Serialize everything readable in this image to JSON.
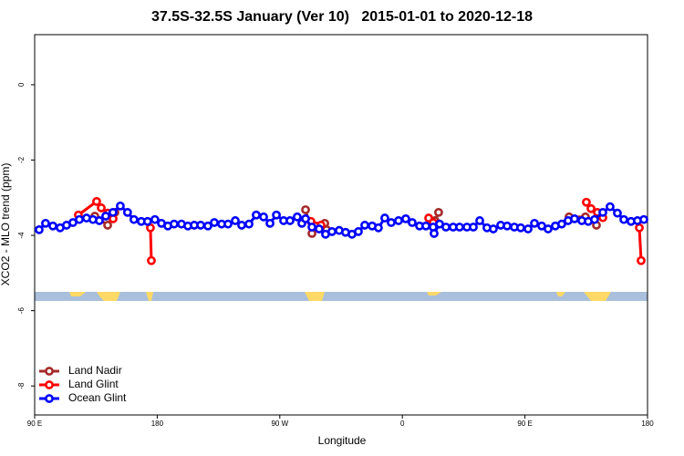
{
  "chart_data": {
    "type": "line",
    "title": "37.5S-32.5S January (Ver 10)   2015-01-01 to 2020-12-18",
    "x_label": "Longitude",
    "y_label": "XCO2 - MLO trend (ppm)",
    "xlim": [
      90,
      540
    ],
    "ylim": [
      -8.77,
      1.33
    ],
    "xticks": [
      {
        "value": 90,
        "label": "90 E"
      },
      {
        "value": 180,
        "label": "180"
      },
      {
        "value": 270,
        "label": "90 W"
      },
      {
        "value": 360,
        "label": "0"
      },
      {
        "value": 450,
        "label": "90 E"
      },
      {
        "value": 540,
        "label": "180"
      }
    ],
    "yticks": [
      0,
      -2,
      -4,
      -6,
      -8
    ],
    "legend": "bottom-left",
    "series": [
      {
        "name": "Land Nadir",
        "color": "#a52a2a",
        "x": [
          134.2,
          143.6,
          148.9,
          null,
          288.9,
          293.6,
          298.9,
          303.0,
          304.3,
          null,
          381.3,
          384.0,
          386.6,
          null,
          482.4,
          494.4,
          502.5
        ],
        "values": [
          -3.49,
          -3.73,
          -3.39,
          null,
          -3.32,
          -3.95,
          -3.75,
          -3.68,
          -3.85,
          null,
          -3.68,
          -3.61,
          -3.39,
          null,
          -3.51,
          -3.51,
          -3.73
        ]
      },
      {
        "name": "Land Glint",
        "color": "#ff0000",
        "x": [
          122.1,
          135.5,
          138.9,
          143.6,
          147.6,
          null,
          175.0,
          175.7,
          null,
          292.9,
          296.2,
          300.3,
          null,
          379.3,
          382.6,
          null,
          495.1,
          498.5,
          503.2,
          507.2,
          null,
          534.0,
          535.3
        ],
        "values": [
          -3.46,
          -3.1,
          -3.27,
          -3.41,
          -3.56,
          null,
          -3.8,
          -4.67,
          null,
          -3.63,
          -3.75,
          -3.73,
          null,
          -3.54,
          -3.66,
          null,
          -3.12,
          -3.29,
          -3.39,
          -3.53,
          null,
          -3.8,
          -4.67
        ]
      },
      {
        "name": "Ocean Glint",
        "color": "#0000ff",
        "x": [
          93.3,
          98.0,
          103.4,
          108.7,
          113.4,
          118.1,
          122.8,
          128.1,
          132.8,
          137.5,
          142.2,
          147.5,
          152.9,
          158.2,
          162.9,
          168.3,
          172.9,
          178.3,
          183.1,
          187.8,
          192.4,
          197.8,
          202.5,
          207.2,
          211.9,
          217.2,
          221.9,
          227.3,
          232.0,
          237.3,
          242.0,
          247.4,
          252.7,
          258.1,
          262.8,
          267.5,
          272.8,
          277.5,
          282.8,
          286.2,
          288.9,
          293.6,
          298.9,
          303.6,
          308.3,
          313.6,
          318.3,
          323.0,
          327.7,
          332.4,
          337.8,
          342.4,
          347.1,
          351.8,
          357.2,
          362.5,
          367.2,
          372.6,
          377.3,
          382.6,
          383.3,
          387.3,
          392.0,
          397.3,
          402.0,
          407.4,
          412.1,
          416.8,
          422.1,
          426.8,
          432.2,
          436.9,
          442.2,
          446.9,
          452.3,
          457.0,
          462.3,
          467.0,
          472.3,
          477.0,
          481.7,
          486.4,
          491.8,
          496.5,
          501.1,
          507.2,
          512.5,
          517.9,
          522.6,
          527.9,
          532.6,
          537.3
        ],
        "values": [
          -3.85,
          -3.68,
          -3.75,
          -3.8,
          -3.73,
          -3.66,
          -3.58,
          -3.54,
          -3.58,
          -3.61,
          -3.49,
          -3.39,
          -3.22,
          -3.39,
          -3.58,
          -3.63,
          -3.63,
          -3.58,
          -3.68,
          -3.75,
          -3.7,
          -3.7,
          -3.75,
          -3.73,
          -3.73,
          -3.75,
          -3.66,
          -3.7,
          -3.7,
          -3.61,
          -3.73,
          -3.7,
          -3.46,
          -3.51,
          -3.68,
          -3.46,
          -3.61,
          -3.61,
          -3.51,
          -3.68,
          -3.56,
          -3.78,
          -3.83,
          -3.97,
          -3.9,
          -3.87,
          -3.92,
          -3.97,
          -3.9,
          -3.73,
          -3.75,
          -3.8,
          -3.54,
          -3.66,
          -3.61,
          -3.56,
          -3.66,
          -3.75,
          -3.75,
          -3.78,
          -3.95,
          -3.7,
          -3.78,
          -3.78,
          -3.78,
          -3.78,
          -3.78,
          -3.61,
          -3.8,
          -3.83,
          -3.73,
          -3.75,
          -3.78,
          -3.8,
          -3.83,
          -3.68,
          -3.75,
          -3.83,
          -3.75,
          -3.7,
          -3.61,
          -3.56,
          -3.61,
          -3.63,
          -3.58,
          -3.39,
          -3.24,
          -3.41,
          -3.58,
          -3.63,
          -3.61,
          -3.58
        ]
      }
    ]
  }
}
